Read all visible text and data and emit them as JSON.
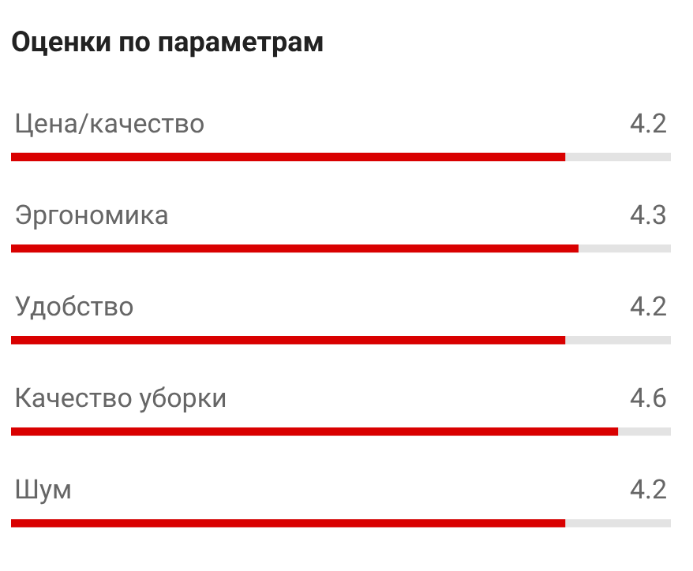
{
  "chart_data": {
    "type": "bar",
    "orientation": "horizontal",
    "title": "Оценки по параметрам",
    "categories": [
      "Цена/качество",
      "Эргономика",
      "Удобство",
      "Качество уборки",
      "Шум"
    ],
    "values": [
      4.2,
      4.3,
      4.2,
      4.6,
      4.2
    ],
    "color": "#d90000",
    "xlim": [
      0,
      5
    ],
    "data_labels": true,
    "grid": false,
    "legend": false,
    "tick_labels": false
  }
}
